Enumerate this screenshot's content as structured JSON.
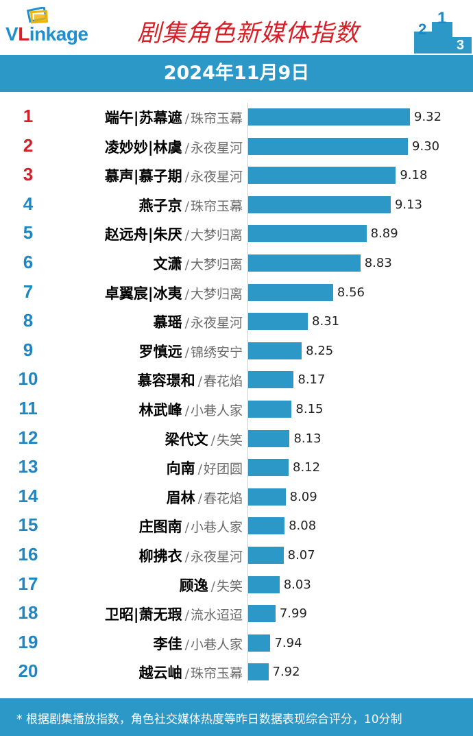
{
  "header": {
    "logo_text": "VLinkage",
    "title": "剧集角色新媒体指数",
    "podium_numbers": [
      "2",
      "1",
      "3"
    ]
  },
  "date": "2024年11月9日",
  "colors": {
    "bar": "#2b98c8",
    "top_rank": "#d0202a",
    "rank": "#1f86c2",
    "title": "#d61f26"
  },
  "chart_data": {
    "type": "bar",
    "orientation": "horizontal",
    "title": "剧集角色新媒体指数",
    "categories": [
      {
        "rank": "1",
        "role": "端午|苏幕遮",
        "show": "珠帘玉幕"
      },
      {
        "rank": "2",
        "role": "凌妙妙|林虞",
        "show": "永夜星河"
      },
      {
        "rank": "3",
        "role": "慕声|慕子期",
        "show": "永夜星河"
      },
      {
        "rank": "4",
        "role": "燕子京",
        "show": "珠帘玉幕"
      },
      {
        "rank": "5",
        "role": "赵远舟|朱厌",
        "show": "大梦归离"
      },
      {
        "rank": "6",
        "role": "文潇",
        "show": "大梦归离"
      },
      {
        "rank": "7",
        "role": "卓翼宸|冰夷",
        "show": "大梦归离"
      },
      {
        "rank": "8",
        "role": "慕瑶",
        "show": "永夜星河"
      },
      {
        "rank": "9",
        "role": "罗慎远",
        "show": "锦绣安宁"
      },
      {
        "rank": "10",
        "role": "慕容璟和",
        "show": "春花焰"
      },
      {
        "rank": "11",
        "role": "林武峰",
        "show": "小巷人家"
      },
      {
        "rank": "12",
        "role": "梁代文",
        "show": "失笑"
      },
      {
        "rank": "13",
        "role": "向南",
        "show": "好团圆"
      },
      {
        "rank": "14",
        "role": "眉林",
        "show": "春花焰"
      },
      {
        "rank": "15",
        "role": "庄图南",
        "show": "小巷人家"
      },
      {
        "rank": "16",
        "role": "柳拂衣",
        "show": "永夜星河"
      },
      {
        "rank": "17",
        "role": "顾逸",
        "show": "失笑"
      },
      {
        "rank": "18",
        "role": "卫昭|萧无瑕",
        "show": "流水迢迢"
      },
      {
        "rank": "19",
        "role": "李佳",
        "show": "小巷人家"
      },
      {
        "rank": "20",
        "role": "越云岫",
        "show": "珠帘玉幕"
      }
    ],
    "values": [
      9.32,
      9.3,
      9.18,
      9.13,
      8.89,
      8.83,
      8.56,
      8.31,
      8.25,
      8.17,
      8.15,
      8.13,
      8.12,
      8.09,
      8.08,
      8.07,
      8.03,
      7.99,
      7.94,
      7.92
    ],
    "value_labels": [
      "9.32",
      "9.30",
      "9.18",
      "9.13",
      "8.89",
      "8.83",
      "8.56",
      "8.31",
      "8.25",
      "8.17",
      "8.15",
      "8.13",
      "8.12",
      "8.09",
      "8.08",
      "8.07",
      "8.03",
      "7.99",
      "7.94",
      "7.92"
    ],
    "xlim": [
      7.72,
      9.32
    ],
    "grid": false,
    "legend": "none"
  },
  "footer": {
    "note": "* 根据剧集播放指数，角色社交媒体热度等昨日数据表现综合评分，10分制"
  }
}
